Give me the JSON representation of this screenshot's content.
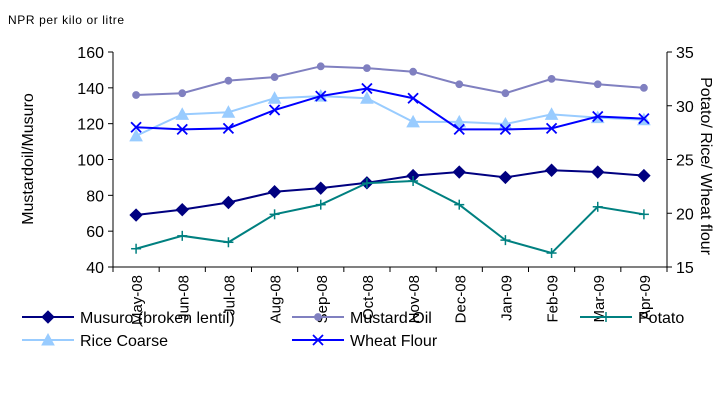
{
  "chart_data": {
    "type": "line",
    "subtitle": "NPR per kilo or litre",
    "categories": [
      "May-08",
      "Jun-08",
      "Jul-08",
      "Aug-08",
      "Sep-08",
      "Oct-08",
      "Nov-08",
      "Dec-08",
      "Jan-09",
      "Feb-09",
      "Mar-09",
      "Apr-09"
    ],
    "ylabel_left": "Mustardoil/Musuro",
    "ylabel_right": "Potato/ Rice/ Wheat flour",
    "ylim_left": [
      40,
      160
    ],
    "yticks_left": [
      40,
      60,
      80,
      100,
      120,
      140,
      160
    ],
    "ylim_right": [
      15,
      35
    ],
    "yticks_right": [
      15,
      20,
      25,
      30,
      35
    ],
    "grid": false,
    "legend_position": "bottom",
    "series": [
      {
        "name": "Musuro (broken lentil)",
        "axis": "left",
        "color": "#000080",
        "marker": "diamond",
        "values": [
          69,
          72,
          76,
          82,
          84,
          87,
          91,
          93,
          90,
          94,
          93,
          91
        ]
      },
      {
        "name": "Mustard Oil",
        "axis": "left",
        "color": "#8080c0",
        "marker": "circle",
        "values": [
          136,
          137,
          144,
          146,
          152,
          151,
          149,
          142,
          137,
          145,
          142,
          140
        ]
      },
      {
        "name": "Potato",
        "axis": "right",
        "color": "#008080",
        "marker": "plus",
        "values": [
          16.7,
          17.9,
          17.3,
          19.9,
          20.8,
          22.8,
          23.0,
          20.8,
          17.5,
          16.3,
          20.6,
          19.9
        ]
      },
      {
        "name": "Rice Coarse",
        "axis": "right",
        "color": "#99ccff",
        "marker": "triangle",
        "values": [
          27.2,
          29.2,
          29.4,
          30.7,
          30.9,
          30.7,
          28.5,
          28.5,
          28.3,
          29.2,
          28.9,
          28.7
        ]
      },
      {
        "name": "Wheat Flour",
        "axis": "right",
        "color": "#0000ff",
        "marker": "x",
        "values": [
          28.0,
          27.8,
          27.9,
          29.6,
          30.9,
          31.6,
          30.7,
          27.8,
          27.8,
          27.9,
          29.0,
          28.8
        ]
      }
    ]
  }
}
